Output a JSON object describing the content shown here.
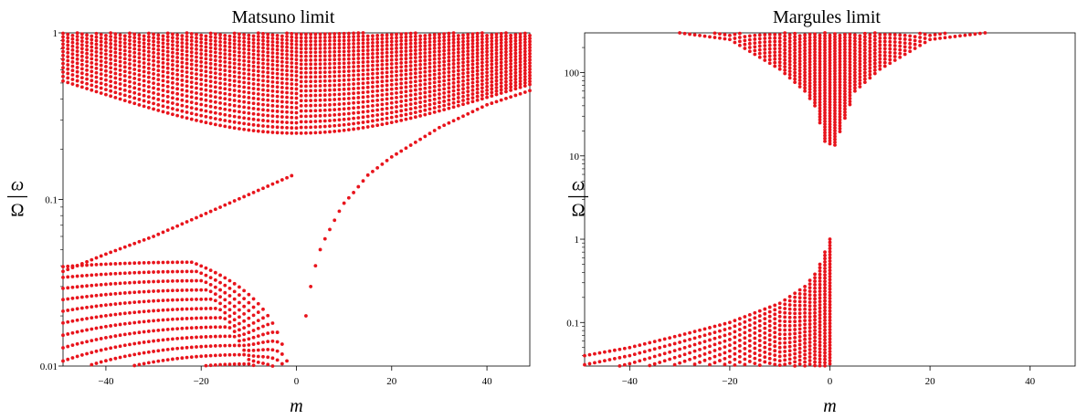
{
  "chart_data": [
    {
      "type": "scatter",
      "title": "Matsuno limit",
      "xlabel": "m",
      "ylabel_num": "ω",
      "ylabel_den": "Ω",
      "xlim": [
        -49,
        49
      ],
      "ylim": [
        0.01,
        1
      ],
      "yscale": "log",
      "xticks": [
        -40,
        -20,
        0,
        20,
        40
      ],
      "xtick_labels": [
        "−40",
        "−20",
        "0",
        "20",
        "40"
      ],
      "yticks": [
        0.01,
        0.1,
        1
      ],
      "ytick_labels": [
        "0.01",
        "0.1",
        "1"
      ],
      "marker_color": "#e8141c",
      "series": [
        {
          "family": "gravity-west",
          "model": "max(0.25 + 0.0001*m^2, 0.25*(n+1) + 0.00008*m^2 + 0.004*|m|)",
          "n_range": [
            0,
            40
          ],
          "anchor_values": {
            "m": [
              -49,
              -15,
              0,
              49
            ],
            "n0": [
              0.52,
              0.27,
              0.25,
              0.5
            ]
          }
        },
        {
          "family": "kelvin-like",
          "description": "values read off the plot",
          "x": [
            -49,
            -40,
            -30,
            -20,
            -10,
            0,
            10,
            20,
            30,
            40,
            49
          ],
          "y": [
            0.037,
            0.047,
            0.06,
            0.08,
            0.107,
            0.143,
            0.19,
            0.25,
            0.33,
            0.42,
            0.5
          ]
        },
        {
          "family": "mixed-rossby",
          "x": [
            2,
            3,
            4,
            5,
            6,
            7,
            8,
            9,
            10,
            12,
            15,
            20,
            30,
            40,
            49
          ],
          "y": [
            0.02,
            0.03,
            0.04,
            0.05,
            0.058,
            0.066,
            0.075,
            0.085,
            0.095,
            0.11,
            0.14,
            0.18,
            0.27,
            0.37,
            0.45
          ]
        },
        {
          "family": "rossby",
          "model": "|m| / (m^2/a + (2n+1)*b), n = 1..",
          "peaks": {
            "m": [
              -23,
              -18,
              -14
            ],
            "y": [
              0.042,
              0.036,
              0.031
            ]
          }
        }
      ]
    },
    {
      "type": "scatter",
      "title": "Margules limit",
      "xlabel": "m",
      "ylabel_num": "ω",
      "ylabel_den": "Ω",
      "xlim": [
        -49,
        49
      ],
      "ylim": [
        0.03,
        300
      ],
      "yscale": "log",
      "xticks": [
        -40,
        -20,
        0,
        20,
        40
      ],
      "xtick_labels": [
        "−40",
        "−20",
        "0",
        "20",
        "40"
      ],
      "yticks": [
        0.1,
        1,
        10,
        100
      ],
      "ytick_labels": [
        "0.1",
        "1",
        "10",
        "100"
      ],
      "marker_color": "#e8141c",
      "series": [
        {
          "family": "gravity",
          "x": [
            -30,
            -20,
            -10,
            -5,
            -3,
            -2,
            -1,
            0,
            1,
            5,
            10,
            20,
            31
          ],
          "y_min": [
            300,
            250,
            110,
            60,
            40,
            25,
            15,
            14,
            13.5,
            60,
            110,
            250,
            300
          ]
        },
        {
          "family": "rossby",
          "x": [
            -49,
            -40,
            -30,
            -20,
            -10,
            -5,
            -3,
            -2,
            -1,
            0
          ],
          "y_max": [
            0.04,
            0.05,
            0.07,
            0.1,
            0.17,
            0.27,
            0.38,
            0.5,
            0.7,
            1.0
          ]
        }
      ]
    }
  ]
}
